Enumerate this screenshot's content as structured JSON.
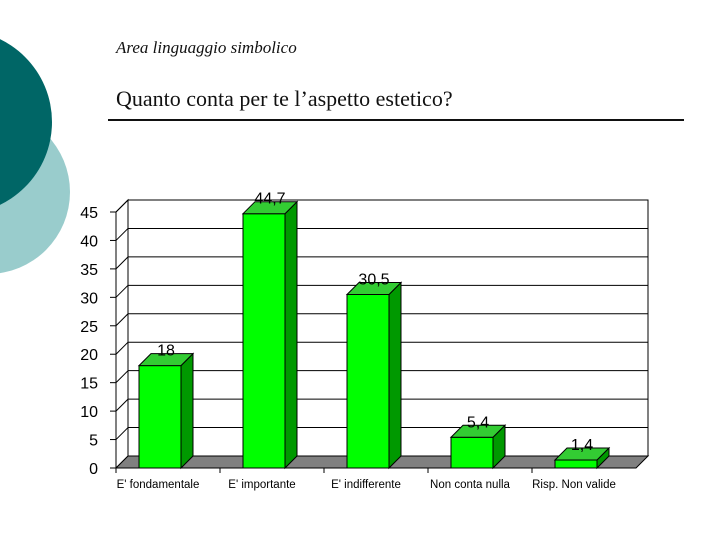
{
  "slide": {
    "section_title": "Area linguaggio simbolico",
    "question_title": "Quanto conta per te l’aspetto estetico?"
  },
  "colors": {
    "bar_face": "#00ff00",
    "bar_side": "#009900",
    "bar_top": "#33cc33",
    "floor": "#808080",
    "deco_dark": "#006666",
    "deco_light": "#99cccc"
  },
  "chart_data": {
    "type": "bar",
    "title": "",
    "xlabel": "",
    "ylabel": "",
    "categories": [
      "E' fondamentale",
      "E' importante",
      "E' indifferente",
      "Non conta nulla",
      "Risp. Non valide"
    ],
    "values": [
      18,
      44.7,
      30.5,
      5.4,
      1.4
    ],
    "value_labels": [
      "18",
      "44,7",
      "30,5",
      "5,4",
      "1,4"
    ],
    "ylim": [
      0,
      45
    ],
    "yticks": [
      0,
      5,
      10,
      15,
      20,
      25,
      30,
      35,
      40,
      45
    ],
    "grid": true,
    "legend": "none",
    "style": "3d"
  }
}
